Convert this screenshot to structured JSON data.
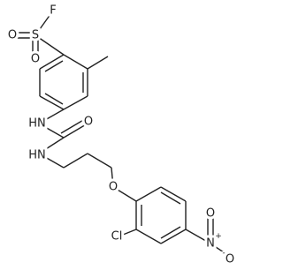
{
  "atoms": [
    "F",
    "S",
    "O",
    "O",
    "HN",
    "O",
    "HN",
    "O",
    "Cl",
    "N",
    "O",
    "O"
  ],
  "charges": [
    "+",
    "-"
  ]
}
